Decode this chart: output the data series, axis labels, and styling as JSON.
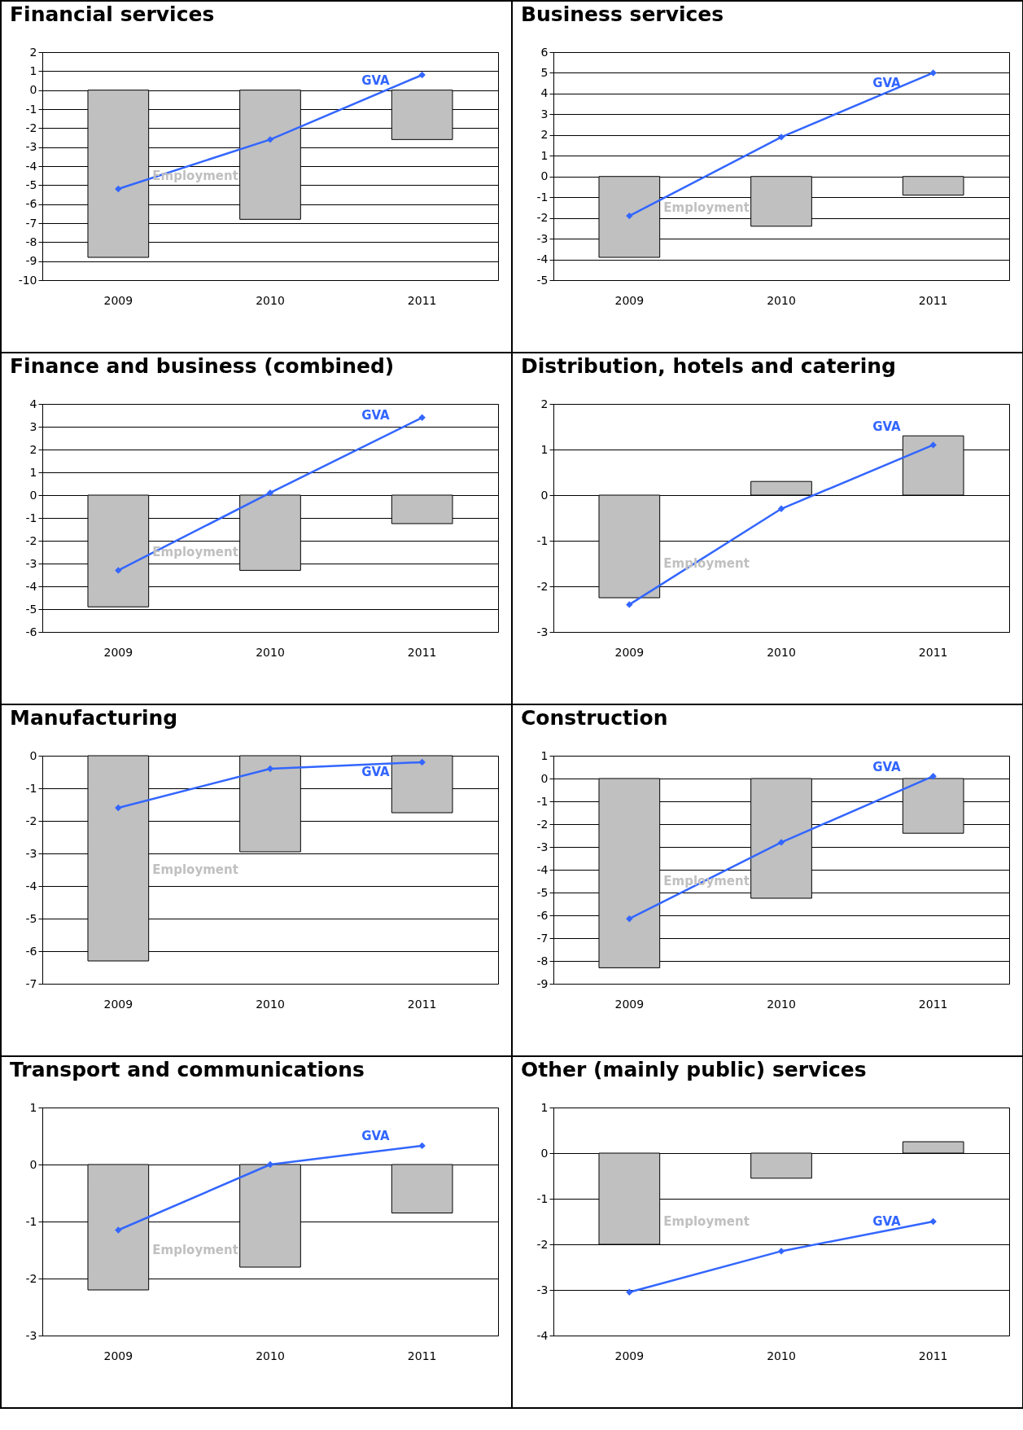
{
  "chart_data": [
    {
      "type": "bar",
      "title": "Financial services",
      "categories": [
        "2009",
        "2010",
        "2011"
      ],
      "ylim": [
        -10,
        2
      ],
      "yticks": [
        -10,
        -9,
        -8,
        -7,
        -6,
        -5,
        -4,
        -3,
        -2,
        -1,
        0,
        1,
        2
      ],
      "grid": "y",
      "marker": "diamond",
      "series": [
        {
          "name": "Employment",
          "color": "#c0c0c0",
          "values": [
            -8.8,
            -6.8,
            -2.6
          ]
        },
        {
          "name": "GVA",
          "type": "line",
          "color": "#3366ff",
          "values": [
            -5.2,
            -2.6,
            0.8
          ]
        }
      ]
    },
    {
      "type": "bar",
      "title": "Business services",
      "categories": [
        "2009",
        "2010",
        "2011"
      ],
      "ylim": [
        -5,
        6
      ],
      "yticks": [
        -5,
        -4,
        -3,
        -2,
        -1,
        0,
        1,
        2,
        3,
        4,
        5,
        6
      ],
      "grid": "y",
      "marker": "diamond",
      "series": [
        {
          "name": "Employment",
          "color": "#c0c0c0",
          "values": [
            -3.9,
            -2.4,
            -0.9
          ]
        },
        {
          "name": "GVA",
          "type": "line",
          "color": "#3366ff",
          "values": [
            -1.9,
            1.9,
            5.0
          ]
        }
      ]
    },
    {
      "type": "bar",
      "title": "Finance and business (combined)",
      "categories": [
        "2009",
        "2010",
        "2011"
      ],
      "ylim": [
        -6,
        4
      ],
      "yticks": [
        -6,
        -5,
        -4,
        -3,
        -2,
        -1,
        0,
        1,
        2,
        3,
        4
      ],
      "grid": "y",
      "marker": "diamond",
      "series": [
        {
          "name": "Employment",
          "color": "#c0c0c0",
          "values": [
            -4.9,
            -3.3,
            -1.25
          ]
        },
        {
          "name": "GVA",
          "type": "line",
          "color": "#3366ff",
          "values": [
            -3.3,
            0.1,
            3.4
          ]
        }
      ]
    },
    {
      "type": "bar",
      "title": "Distribution, hotels and catering",
      "categories": [
        "2009",
        "2010",
        "2011"
      ],
      "ylim": [
        -3,
        2
      ],
      "yticks": [
        -3,
        -2,
        -1,
        0,
        1,
        2
      ],
      "grid": "y",
      "marker": "diamond",
      "series": [
        {
          "name": "Employment",
          "color": "#c0c0c0",
          "values": [
            -2.25,
            0.3,
            1.3
          ]
        },
        {
          "name": "GVA",
          "type": "line",
          "color": "#3366ff",
          "values": [
            -2.4,
            -0.3,
            1.1
          ]
        }
      ]
    },
    {
      "type": "bar",
      "title": "Manufacturing",
      "categories": [
        "2009",
        "2010",
        "2011"
      ],
      "ylim": [
        -7,
        0
      ],
      "yticks": [
        -7,
        -6,
        -5,
        -4,
        -3,
        -2,
        -1,
        0
      ],
      "grid": "y",
      "marker": "diamond",
      "series": [
        {
          "name": "Employment",
          "color": "#c0c0c0",
          "values": [
            -6.3,
            -2.95,
            -1.75
          ]
        },
        {
          "name": "GVA",
          "type": "line",
          "color": "#3366ff",
          "values": [
            -1.6,
            -0.4,
            -0.2
          ]
        }
      ]
    },
    {
      "type": "bar",
      "title": "Construction",
      "categories": [
        "2009",
        "2010",
        "2011"
      ],
      "ylim": [
        -9,
        1
      ],
      "yticks": [
        -9,
        -8,
        -7,
        -6,
        -5,
        -4,
        -3,
        -2,
        -1,
        0,
        1
      ],
      "grid": "y",
      "marker": "diamond",
      "series": [
        {
          "name": "Employment",
          "color": "#c0c0c0",
          "values": [
            -8.3,
            -5.25,
            -2.4
          ]
        },
        {
          "name": "GVA",
          "type": "line",
          "color": "#3366ff",
          "values": [
            -6.15,
            -2.8,
            0.1
          ]
        }
      ]
    },
    {
      "type": "bar",
      "title": "Transport and communications",
      "categories": [
        "2009",
        "2010",
        "2011"
      ],
      "ylim": [
        -3,
        1
      ],
      "yticks": [
        -3,
        -2,
        -1,
        0,
        1
      ],
      "grid": "y",
      "marker": "diamond",
      "series": [
        {
          "name": "Employment",
          "color": "#c0c0c0",
          "values": [
            -2.2,
            -1.8,
            -0.85
          ]
        },
        {
          "name": "GVA",
          "type": "line",
          "color": "#3366ff",
          "values": [
            -1.15,
            0.0,
            0.33
          ]
        }
      ]
    },
    {
      "type": "bar",
      "title": "Other (mainly public) services",
      "categories": [
        "2009",
        "2010",
        "2011"
      ],
      "ylim": [
        -4,
        1
      ],
      "yticks": [
        -4,
        -3,
        -2,
        -1,
        0,
        1
      ],
      "grid": "y",
      "marker": "diamond",
      "series": [
        {
          "name": "Employment",
          "color": "#c0c0c0",
          "values": [
            -2.0,
            -0.55,
            0.25
          ]
        },
        {
          "name": "GVA",
          "type": "line",
          "color": "#3366ff",
          "values": [
            -3.05,
            -2.15,
            -1.5
          ]
        }
      ]
    }
  ]
}
